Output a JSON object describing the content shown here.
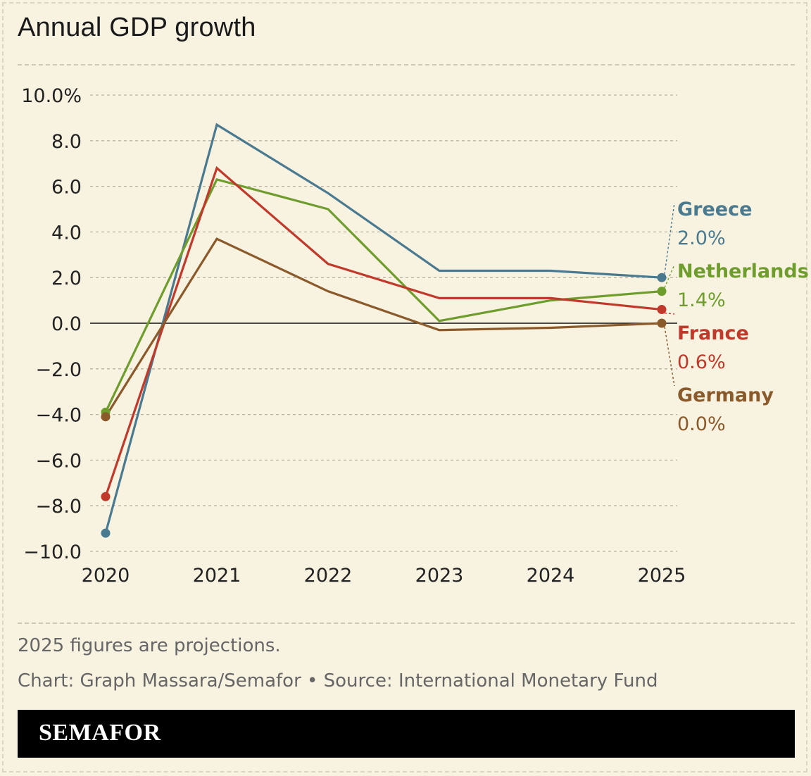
{
  "title": "Annual GDP growth",
  "note": "2025 figures are projections.",
  "credit": "Chart: Graph Massara/Semafor • Source: International Monetary Fund",
  "brand": "SEMAFOR",
  "chart_data": {
    "type": "line",
    "x": [
      "2020",
      "2021",
      "2022",
      "2023",
      "2024",
      "2025"
    ],
    "ylim": [
      -10,
      10
    ],
    "yticks": [
      10,
      8,
      6,
      4,
      2,
      0,
      -2,
      -4,
      -6,
      -8,
      -10
    ],
    "ytick_labels": [
      "10.0%",
      "8.0",
      "6.0",
      "4.0",
      "2.0",
      "0.0",
      "−2.0",
      "−4.0",
      "−6.0",
      "−8.0",
      "−10.0"
    ],
    "grid": true,
    "series": [
      {
        "name": "Greece",
        "color": "#4a7a8f",
        "values": [
          -9.2,
          8.7,
          5.7,
          2.3,
          2.3,
          2.0
        ],
        "end_label": "2.0%"
      },
      {
        "name": "Netherlands",
        "color": "#6f9d2d",
        "values": [
          -3.9,
          6.3,
          5.0,
          0.1,
          1.0,
          1.4
        ],
        "end_label": "1.4%"
      },
      {
        "name": "France",
        "color": "#c0392b",
        "values": [
          -7.6,
          6.8,
          2.6,
          1.1,
          1.1,
          0.6
        ],
        "end_label": "0.6%"
      },
      {
        "name": "Germany",
        "color": "#8a5a2b",
        "values": [
          -4.1,
          3.7,
          1.4,
          -0.3,
          -0.2,
          0.0
        ],
        "end_label": "0.0%"
      }
    ]
  }
}
